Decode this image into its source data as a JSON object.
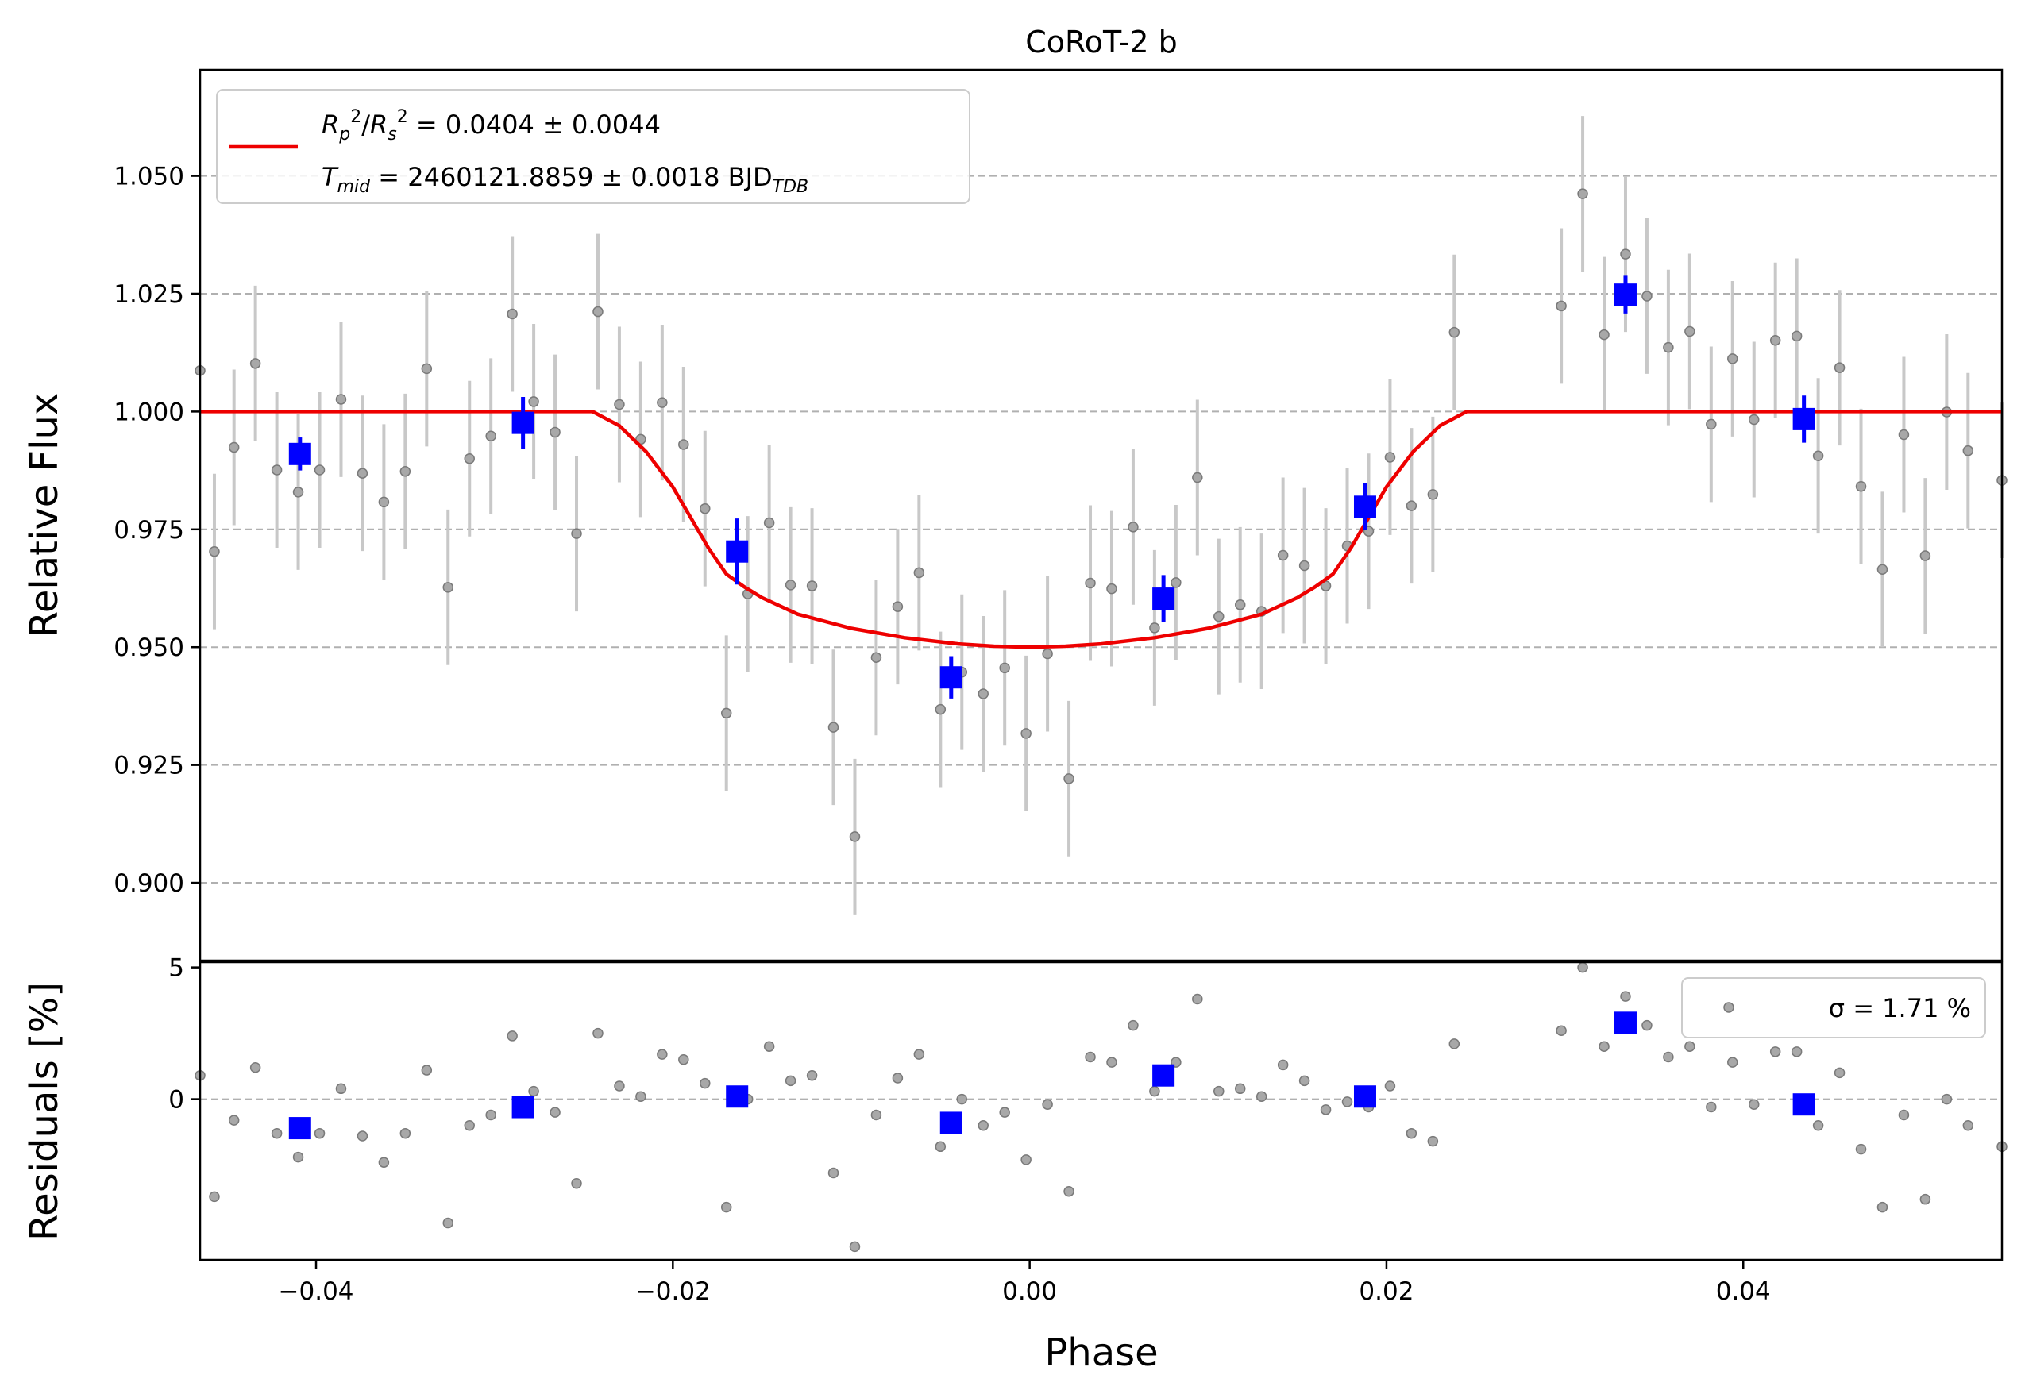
{
  "chart_data": [
    {
      "type": "scatter",
      "panel": "main",
      "title": "CoRoT-2 b",
      "ylabel": "Relative Flux",
      "xlim": [
        -0.0465,
        0.0545
      ],
      "ylim": [
        0.8835,
        1.0725
      ],
      "yticks": [
        0.9,
        0.925,
        0.95,
        0.975,
        1.0,
        1.025,
        1.05
      ],
      "ytick_labels": [
        "0.900",
        "0.925",
        "0.950",
        "0.975",
        "1.000",
        "1.025",
        "1.050"
      ],
      "grid": "horizontal-dashed",
      "legend": {
        "position": "top-left",
        "line1": "R_p^2/R_s^2 = 0.0404 ± 0.0044",
        "line2": "T_mid = 2460121.8859 ± 0.0018 BJD_TDB"
      },
      "series": [
        {
          "role": "data",
          "style": "gray-points-with-errorbars",
          "points": [
            [
              -0.0465,
              1.0087,
              0.0
            ],
            [
              -0.0457,
              0.9703,
              0.0165
            ],
            [
              -0.0446,
              0.9924,
              0.0165
            ],
            [
              -0.0434,
              1.0102,
              0.0165
            ],
            [
              -0.0422,
              0.9876,
              0.0165
            ],
            [
              -0.041,
              0.9829,
              0.0165
            ],
            [
              -0.0398,
              0.9876,
              0.0165
            ],
            [
              -0.0386,
              1.0026,
              0.0165
            ],
            [
              -0.0374,
              0.9869,
              0.0165
            ],
            [
              -0.0362,
              0.9808,
              0.0165
            ],
            [
              -0.035,
              0.9873,
              0.0165
            ],
            [
              -0.0338,
              1.0091,
              0.0165
            ],
            [
              -0.0326,
              0.9627,
              0.0165
            ],
            [
              -0.0314,
              0.99,
              0.0165
            ],
            [
              -0.0302,
              0.9948,
              0.0165
            ],
            [
              -0.029,
              1.0207,
              0.0165
            ],
            [
              -0.0278,
              1.0021,
              0.0165
            ],
            [
              -0.0266,
              0.9956,
              0.0165
            ],
            [
              -0.0254,
              0.9741,
              0.0165
            ],
            [
              -0.0242,
              1.0212,
              0.0165
            ],
            [
              -0.023,
              1.0015,
              0.0165
            ],
            [
              -0.0218,
              0.9941,
              0.0165
            ],
            [
              -0.0206,
              1.0019,
              0.0165
            ],
            [
              -0.0194,
              0.993,
              0.0165
            ],
            [
              -0.0182,
              0.9794,
              0.0165
            ],
            [
              -0.017,
              0.936,
              0.0165
            ],
            [
              -0.0158,
              0.9613,
              0.0165
            ],
            [
              -0.0146,
              0.9764,
              0.0165
            ],
            [
              -0.0134,
              0.9632,
              0.0165
            ],
            [
              -0.0122,
              0.963,
              0.0165
            ],
            [
              -0.011,
              0.933,
              0.0165
            ],
            [
              -0.0098,
              0.9098,
              0.0165
            ],
            [
              -0.0086,
              0.9478,
              0.0165
            ],
            [
              -0.0074,
              0.9586,
              0.0165
            ],
            [
              -0.0062,
              0.9658,
              0.0165
            ],
            [
              -0.005,
              0.9368,
              0.0165
            ],
            [
              -0.0038,
              0.9447,
              0.0165
            ],
            [
              -0.0026,
              0.9401,
              0.0165
            ],
            [
              -0.0014,
              0.9456,
              0.0165
            ],
            [
              -0.0002,
              0.9317,
              0.0165
            ],
            [
              0.001,
              0.9486,
              0.0165
            ],
            [
              0.0022,
              0.9221,
              0.0165
            ],
            [
              0.0034,
              0.9636,
              0.0165
            ],
            [
              0.0046,
              0.9624,
              0.0165
            ],
            [
              0.0058,
              0.9755,
              0.0165
            ],
            [
              0.007,
              0.9541,
              0.0165
            ],
            [
              0.0082,
              0.9637,
              0.0165
            ],
            [
              0.0094,
              0.986,
              0.0165
            ],
            [
              0.0106,
              0.9565,
              0.0165
            ],
            [
              0.0118,
              0.959,
              0.0165
            ],
            [
              0.013,
              0.9576,
              0.0165
            ],
            [
              0.0142,
              0.9695,
              0.0165
            ],
            [
              0.0154,
              0.9673,
              0.0165
            ],
            [
              0.0166,
              0.963,
              0.0165
            ],
            [
              0.0178,
              0.9715,
              0.0165
            ],
            [
              0.019,
              0.9746,
              0.0165
            ],
            [
              0.0202,
              0.9903,
              0.0165
            ],
            [
              0.0214,
              0.98,
              0.0165
            ],
            [
              0.0226,
              0.9824,
              0.0165
            ],
            [
              0.0238,
              1.0168,
              0.0165
            ],
            [
              0.0298,
              1.0224,
              0.0165
            ],
            [
              0.031,
              1.0462,
              0.0165
            ],
            [
              0.0322,
              1.0163,
              0.0165
            ],
            [
              0.0334,
              1.0334,
              0.0165
            ],
            [
              0.0346,
              1.0245,
              0.0165
            ],
            [
              0.0358,
              1.0136,
              0.0165
            ],
            [
              0.037,
              1.017,
              0.0165
            ],
            [
              0.0382,
              0.9973,
              0.0165
            ],
            [
              0.0394,
              1.0112,
              0.0165
            ],
            [
              0.0406,
              0.9983,
              0.0165
            ],
            [
              0.0418,
              1.0151,
              0.0165
            ],
            [
              0.043,
              1.016,
              0.0165
            ],
            [
              0.0442,
              0.9906,
              0.0165
            ],
            [
              0.0454,
              1.0093,
              0.0165
            ],
            [
              0.0466,
              0.9841,
              0.0165
            ],
            [
              0.0478,
              0.9665,
              0.0165
            ],
            [
              0.049,
              0.9951,
              0.0165
            ],
            [
              0.0502,
              0.9694,
              0.0165
            ],
            [
              0.0514,
              0.9999,
              0.0165
            ],
            [
              0.0526,
              0.9917,
              0.0165
            ],
            [
              0.0545,
              0.9854,
              0.0165
            ]
          ]
        },
        {
          "role": "binned",
          "style": "blue-squares-with-errorbars",
          "points": [
            [
              -0.0409,
              0.991,
              0.0035
            ],
            [
              -0.0284,
              0.9976,
              0.0055
            ],
            [
              -0.0164,
              0.9703,
              0.007
            ],
            [
              -0.0044,
              0.9436,
              0.0045
            ],
            [
              0.0075,
              0.9603,
              0.005
            ],
            [
              0.0188,
              0.9798,
              0.005
            ],
            [
              0.0334,
              1.0248,
              0.004
            ],
            [
              0.0434,
              0.9984,
              0.005
            ]
          ]
        },
        {
          "role": "model",
          "style": "red-line",
          "x": [
            -0.0465,
            -0.0245,
            -0.023,
            -0.0215,
            -0.02,
            -0.019,
            -0.018,
            -0.017,
            -0.016,
            -0.015,
            -0.013,
            -0.01,
            -0.007,
            -0.004,
            -0.002,
            0.0,
            0.002,
            0.004,
            0.007,
            0.01,
            0.013,
            0.015,
            0.016,
            0.017,
            0.018,
            0.019,
            0.02,
            0.0215,
            0.023,
            0.0245,
            0.0545
          ],
          "y": [
            1.0,
            1.0,
            0.997,
            0.9915,
            0.984,
            0.9775,
            0.971,
            0.9655,
            0.9628,
            0.9605,
            0.957,
            0.954,
            0.952,
            0.9507,
            0.9502,
            0.95,
            0.9502,
            0.9507,
            0.952,
            0.954,
            0.957,
            0.9605,
            0.9628,
            0.9655,
            0.971,
            0.9775,
            0.984,
            0.9915,
            0.997,
            1.0,
            1.0
          ]
        }
      ]
    },
    {
      "type": "scatter",
      "panel": "residuals",
      "xlabel": "Phase",
      "ylabel": "Residuals [%]",
      "xlim": [
        -0.0465,
        0.0545
      ],
      "ylim": [
        -6.1,
        5.2
      ],
      "yticks": [
        0,
        5
      ],
      "ytick_labels": [
        "0",
        "5"
      ],
      "xticks": [
        -0.04,
        -0.02,
        0.0,
        0.02,
        0.04
      ],
      "xtick_labels": [
        "−0.04",
        "−0.02",
        "0.00",
        "0.02",
        "0.04"
      ],
      "zero_line": true,
      "legend": {
        "position": "top-right",
        "label": "σ = 1.71 %"
      },
      "series": [
        {
          "role": "residuals",
          "style": "gray-points",
          "points": [
            [
              -0.0465,
              0.9
            ],
            [
              -0.0457,
              -3.7
            ],
            [
              -0.0446,
              -0.8
            ],
            [
              -0.0434,
              1.2
            ],
            [
              -0.0422,
              -1.3
            ],
            [
              -0.041,
              -2.2
            ],
            [
              -0.0398,
              -1.3
            ],
            [
              -0.0386,
              0.4
            ],
            [
              -0.0374,
              -1.4
            ],
            [
              -0.0362,
              -2.4
            ],
            [
              -0.035,
              -1.3
            ],
            [
              -0.0338,
              1.1
            ],
            [
              -0.0326,
              -4.7
            ],
            [
              -0.0314,
              -1.0
            ],
            [
              -0.0302,
              -0.6
            ],
            [
              -0.029,
              2.4
            ],
            [
              -0.0278,
              0.3
            ],
            [
              -0.0266,
              -0.5
            ],
            [
              -0.0254,
              -3.2
            ],
            [
              -0.0242,
              2.5
            ],
            [
              -0.023,
              0.5
            ],
            [
              -0.0218,
              0.1
            ],
            [
              -0.0206,
              1.7
            ],
            [
              -0.0194,
              1.5
            ],
            [
              -0.0182,
              0.6
            ],
            [
              -0.017,
              -4.1
            ],
            [
              -0.0158,
              0.0
            ],
            [
              -0.0146,
              2.0
            ],
            [
              -0.0134,
              0.7
            ],
            [
              -0.0122,
              0.9
            ],
            [
              -0.011,
              -2.8
            ],
            [
              -0.0098,
              -5.6
            ],
            [
              -0.0086,
              -0.6
            ],
            [
              -0.0074,
              0.8
            ],
            [
              -0.0062,
              1.7
            ],
            [
              -0.005,
              -1.8
            ],
            [
              -0.0038,
              0.0
            ],
            [
              -0.0026,
              -1.0
            ],
            [
              -0.0014,
              -0.5
            ],
            [
              -0.0002,
              -2.3
            ],
            [
              0.001,
              -0.2
            ],
            [
              0.0022,
              -3.5
            ],
            [
              0.0034,
              1.6
            ],
            [
              0.0046,
              1.4
            ],
            [
              0.0058,
              2.8
            ],
            [
              0.007,
              0.3
            ],
            [
              0.0082,
              1.4
            ],
            [
              0.0094,
              3.8
            ],
            [
              0.0106,
              0.3
            ],
            [
              0.0118,
              0.4
            ],
            [
              0.013,
              0.1
            ],
            [
              0.0142,
              1.3
            ],
            [
              0.0154,
              0.7
            ],
            [
              0.0166,
              -0.4
            ],
            [
              0.0178,
              -0.1
            ],
            [
              0.019,
              -0.3
            ],
            [
              0.0202,
              0.5
            ],
            [
              0.0214,
              -1.3
            ],
            [
              0.0226,
              -1.6
            ],
            [
              0.0238,
              2.1
            ],
            [
              0.0298,
              2.6
            ],
            [
              0.031,
              5.0
            ],
            [
              0.0322,
              2.0
            ],
            [
              0.0334,
              3.9
            ],
            [
              0.0346,
              2.8
            ],
            [
              0.0358,
              1.6
            ],
            [
              0.037,
              2.0
            ],
            [
              0.0382,
              -0.3
            ],
            [
              0.0394,
              1.4
            ],
            [
              0.0406,
              -0.2
            ],
            [
              0.0418,
              1.8
            ],
            [
              0.043,
              1.8
            ],
            [
              0.0442,
              -1.0
            ],
            [
              0.0454,
              1.0
            ],
            [
              0.0466,
              -1.9
            ],
            [
              0.0478,
              -4.1
            ],
            [
              0.049,
              -0.6
            ],
            [
              0.0502,
              -3.8
            ],
            [
              0.0514,
              0.0
            ],
            [
              0.0526,
              -1.0
            ],
            [
              0.0545,
              -1.8
            ]
          ]
        },
        {
          "role": "binned-residuals",
          "style": "blue-squares",
          "points": [
            [
              -0.0409,
              -1.1
            ],
            [
              -0.0284,
              -0.3
            ],
            [
              -0.0164,
              0.1
            ],
            [
              -0.0044,
              -0.9
            ],
            [
              0.0075,
              0.9
            ],
            [
              0.0188,
              0.1
            ],
            [
              0.0334,
              2.9
            ],
            [
              0.0434,
              -0.2
            ]
          ]
        }
      ]
    }
  ]
}
